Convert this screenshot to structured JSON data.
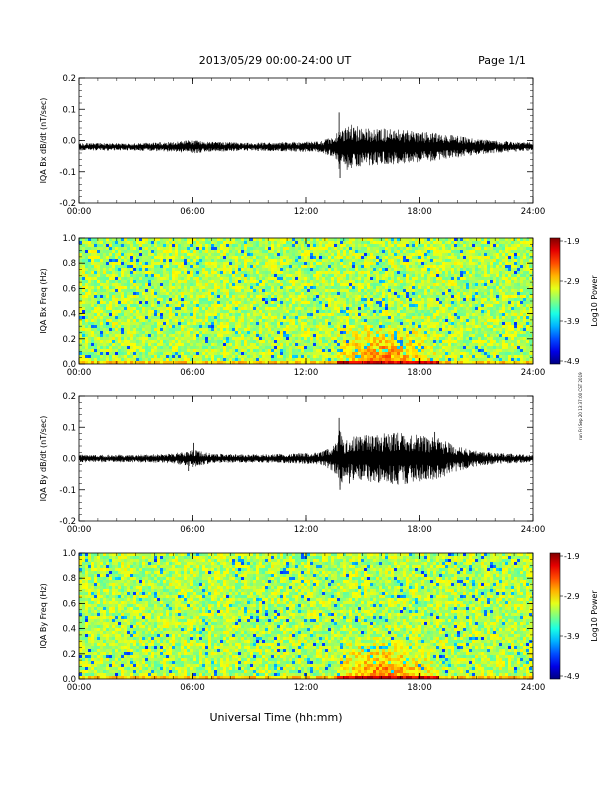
{
  "header": {
    "date_range": "2013/05/29  00:00-24:00 UT",
    "page": "Page 1/1"
  },
  "side_note": "run Fri Sep 20 13:37:00 CST 2019",
  "chart_data": [
    {
      "type": "line",
      "ylabel": "IQA Bx dB/dt (nT/sec)",
      "xlabel": "",
      "x_ticks": [
        "00:00",
        "06:00",
        "12:00",
        "18:00",
        "24:00"
      ],
      "xlim_hours": [
        0,
        24
      ],
      "ylim": [
        -0.2,
        0.2
      ],
      "y_ticks": [
        "-0.2",
        "-0.1",
        "0.0",
        "0.1",
        "0.2"
      ],
      "color": "#000000",
      "envelope": {
        "x_hours": [
          0,
          3,
          5,
          6,
          7,
          9,
          11,
          12.8,
          13.6,
          13.8,
          14.0,
          14.2,
          14.5,
          15,
          16,
          17,
          18,
          19,
          20,
          21,
          22,
          23,
          24
        ],
        "amp": [
          0.012,
          0.012,
          0.016,
          0.022,
          0.016,
          0.013,
          0.015,
          0.018,
          0.04,
          0.09,
          0.05,
          0.08,
          0.07,
          0.06,
          0.06,
          0.055,
          0.05,
          0.045,
          0.035,
          0.025,
          0.02,
          0.016,
          0.014
        ]
      },
      "baseline": -0.02,
      "spikes": [
        {
          "x": 13.75,
          "y": 0.09
        },
        {
          "x": 13.8,
          "y": -0.12
        }
      ]
    },
    {
      "type": "heatmap",
      "ylabel": "IQA Bx Freq (Hz)",
      "x_ticks": [
        "00:00",
        "06:00",
        "12:00",
        "18:00",
        "24:00"
      ],
      "xlim_hours": [
        0,
        24
      ],
      "ylim": [
        0.0,
        1.0
      ],
      "y_ticks": [
        "0.0",
        "0.2",
        "0.4",
        "0.6",
        "0.8",
        "1.0"
      ],
      "colorbar": {
        "label": "Log10 Power",
        "ticks": [
          "-1.9",
          "-2.9",
          "-3.9",
          "-4.9"
        ],
        "range": [
          -4.9,
          -1.9
        ]
      },
      "enhancement": {
        "hours": [
          13.5,
          20
        ],
        "peak_hour": 16,
        "max_freq": 0.35,
        "level": -2.3
      }
    },
    {
      "type": "line",
      "ylabel": "IQA By dB/dt (nT/sec)",
      "xlabel": "",
      "x_ticks": [
        "00:00",
        "06:00",
        "12:00",
        "18:00",
        "24:00"
      ],
      "xlim_hours": [
        0,
        24
      ],
      "ylim": [
        -0.2,
        0.2
      ],
      "y_ticks": [
        "-0.2",
        "-0.1",
        "0.0",
        "0.1",
        "0.2"
      ],
      "color": "#000000",
      "envelope": {
        "x_hours": [
          0,
          3,
          5,
          6,
          7,
          9,
          11,
          12.8,
          13.6,
          13.8,
          14.0,
          14.5,
          15,
          16,
          17,
          18,
          19,
          20,
          21,
          22,
          23,
          24
        ],
        "amp": [
          0.012,
          0.012,
          0.016,
          0.028,
          0.016,
          0.013,
          0.015,
          0.02,
          0.05,
          0.1,
          0.06,
          0.07,
          0.075,
          0.08,
          0.085,
          0.075,
          0.065,
          0.04,
          0.025,
          0.018,
          0.015,
          0.012
        ]
      },
      "baseline": 0.0,
      "spikes": [
        {
          "x": 13.75,
          "y": 0.13
        },
        {
          "x": 13.8,
          "y": -0.1
        },
        {
          "x": 14.3,
          "y": -0.08
        },
        {
          "x": 6.05,
          "y": 0.05
        },
        {
          "x": 5.8,
          "y": -0.04
        },
        {
          "x": 18.8,
          "y": 0.085
        },
        {
          "x": 18.3,
          "y": -0.065
        }
      ]
    },
    {
      "type": "heatmap",
      "ylabel": "IQA By Freq (Hz)",
      "xlabel": "Universal Time (hh:mm)",
      "x_ticks": [
        "00:00",
        "06:00",
        "12:00",
        "18:00",
        "24:00"
      ],
      "xlim_hours": [
        0,
        24
      ],
      "ylim": [
        0.0,
        1.0
      ],
      "y_ticks": [
        "0.0",
        "0.2",
        "0.4",
        "0.6",
        "0.8",
        "1.0"
      ],
      "colorbar": {
        "label": "Log10 Power",
        "ticks": [
          "-1.9",
          "-2.9",
          "-3.9",
          "-4.9"
        ],
        "range": [
          -4.9,
          -1.9
        ]
      },
      "enhancement": {
        "hours": [
          13.5,
          20
        ],
        "peak_hour": 16,
        "max_freq": 0.35,
        "level": -2.3
      }
    }
  ]
}
